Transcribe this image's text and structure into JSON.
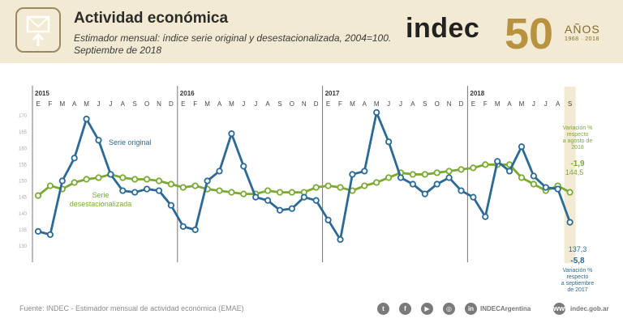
{
  "header": {
    "title": "Actividad económica",
    "subtitle": "Estimador mensual: índice serie original y desestacionalizada, 2004=100. Septiembre de 2018",
    "brand": "indec",
    "anniversary_number": "50",
    "anniversary_word": "AÑOS",
    "anniversary_years": "1968 · 2018",
    "icon": "download-icon"
  },
  "footer": {
    "source": "Fuente: INDEC - Estimador mensual de actividad económica (EMAE)",
    "social_icons": [
      "twitter-icon",
      "facebook-icon",
      "youtube-icon",
      "instagram-icon",
      "linkedin-icon"
    ],
    "handle": "INDECArgentina",
    "website": "indec.gob.ar"
  },
  "chart_data": {
    "type": "line",
    "years": [
      {
        "label": "2015",
        "start_index": 0
      },
      {
        "label": "2016",
        "start_index": 12
      },
      {
        "label": "2017",
        "start_index": 24
      },
      {
        "label": "2018",
        "start_index": 36
      }
    ],
    "month_labels": [
      "E",
      "F",
      "M",
      "A",
      "M",
      "J",
      "J",
      "A",
      "S",
      "O",
      "N",
      "D",
      "E",
      "F",
      "M",
      "A",
      "M",
      "J",
      "J",
      "A",
      "S",
      "O",
      "N",
      "D",
      "E",
      "F",
      "M",
      "A",
      "M",
      "J",
      "J",
      "A",
      "S",
      "O",
      "N",
      "D",
      "E",
      "F",
      "M",
      "A",
      "M",
      "J",
      "J",
      "A",
      "S"
    ],
    "highlight_index": 44,
    "ylim": [
      125,
      175
    ],
    "yticks": [
      130,
      135,
      140,
      145,
      150,
      155,
      160,
      165,
      170
    ],
    "series": [
      {
        "name": "Serie original",
        "color": "#2b6a96",
        "values": [
          134.5,
          133.5,
          150,
          157,
          169,
          162.5,
          152,
          147,
          146.5,
          147.5,
          147,
          142.5,
          136,
          135,
          150,
          153,
          164.5,
          154.5,
          145,
          144,
          141,
          141.5,
          145,
          144,
          138,
          132,
          152,
          153,
          171,
          162,
          151,
          149,
          146,
          149,
          151,
          147,
          145,
          139,
          156,
          153,
          160.5,
          151.5,
          148,
          147.5,
          137.3
        ]
      },
      {
        "name": "Serie desestacionalizada",
        "color": "#7aaa34",
        "values": [
          145.5,
          148.5,
          147.5,
          149.5,
          150.5,
          151,
          152,
          151,
          150.5,
          150.5,
          150,
          149,
          148,
          148.5,
          147.5,
          147,
          146.5,
          146,
          146,
          147,
          146.5,
          146.5,
          146.5,
          148,
          148.5,
          148,
          147,
          148.5,
          149.5,
          151,
          152.5,
          152,
          152,
          152.5,
          153,
          153.5,
          154,
          155,
          155,
          155,
          151,
          149,
          147,
          148.5,
          146.5
        ]
      }
    ],
    "series_labels": {
      "original": "Serie original",
      "desest_line1": "Serie",
      "desest_line2": "desestacionalizada"
    },
    "annotations": {
      "desest_value": "144,5",
      "desest_change": "-1,9",
      "desest_note": [
        "Variación %",
        "respecto",
        "a agosto de",
        "2018"
      ],
      "original_value": "137,3",
      "original_change": "-5,8",
      "original_note": [
        "Variación %",
        "respecto",
        "a septiembre",
        "de 2017"
      ]
    },
    "grid": false
  }
}
